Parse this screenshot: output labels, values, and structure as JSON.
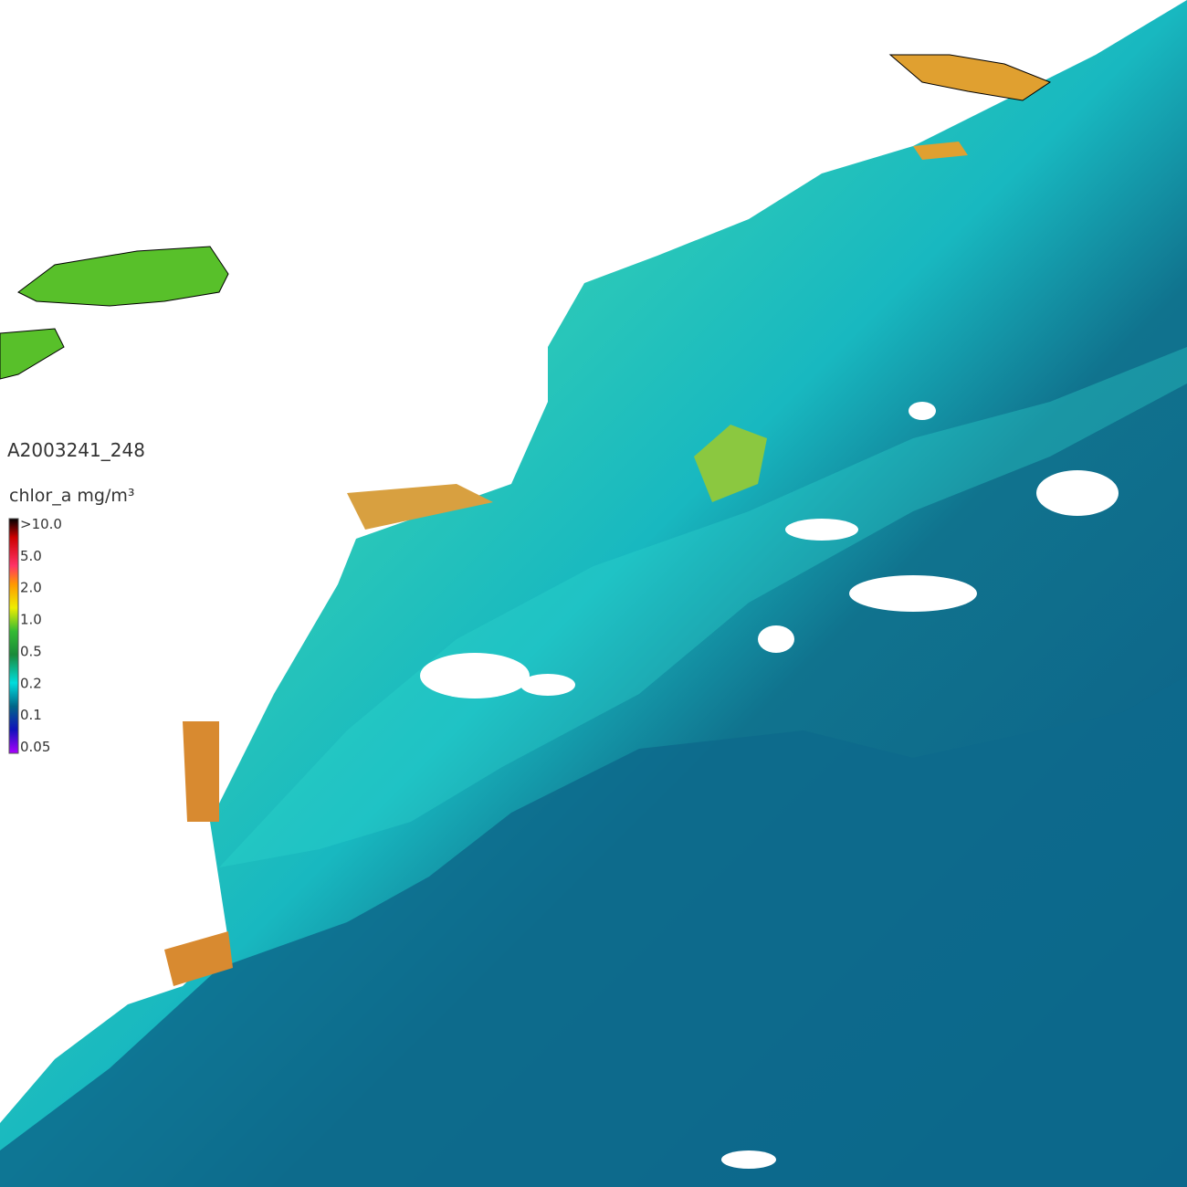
{
  "image_id": "A2003241_248",
  "legend": {
    "title": "chlor_a mg/m³",
    "labels": [
      ">10.0",
      "5.0",
      "2.0",
      "1.0",
      "0.5",
      "0.2",
      "0.1",
      "0.05"
    ]
  }
}
